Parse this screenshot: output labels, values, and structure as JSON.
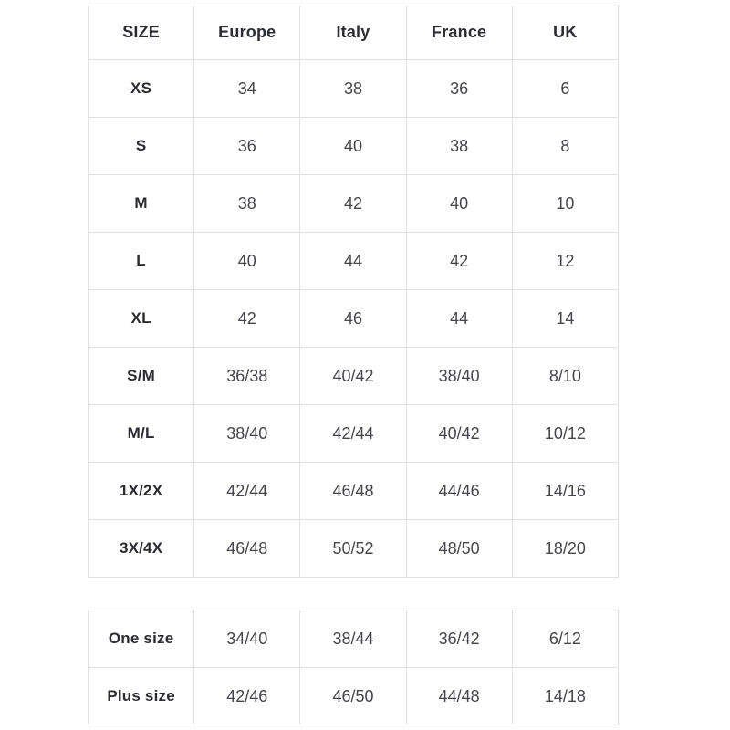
{
  "colors": {
    "background": "#ffffff",
    "border": "#dee2e6",
    "label_text": "#2b2b34",
    "cell_text": "#45454e"
  },
  "table_main": {
    "columns": [
      "SIZE",
      "Europe",
      "Italy",
      "France",
      "UK"
    ],
    "rows": [
      {
        "size": "XS",
        "values": [
          "34",
          "38",
          "36",
          "6"
        ]
      },
      {
        "size": "S",
        "values": [
          "36",
          "40",
          "38",
          "8"
        ]
      },
      {
        "size": "M",
        "values": [
          "38",
          "42",
          "40",
          "10"
        ]
      },
      {
        "size": "L",
        "values": [
          "40",
          "44",
          "42",
          "12"
        ]
      },
      {
        "size": "XL",
        "values": [
          "42",
          "46",
          "44",
          "14"
        ]
      },
      {
        "size": "S/M",
        "values": [
          "36/38",
          "40/42",
          "38/40",
          "8/10"
        ]
      },
      {
        "size": "M/L",
        "values": [
          "38/40",
          "42/44",
          "40/42",
          "10/12"
        ]
      },
      {
        "size": "1X/2X",
        "values": [
          "42/44",
          "46/48",
          "44/46",
          "14/16"
        ]
      },
      {
        "size": "3X/4X",
        "values": [
          "46/48",
          "50/52",
          "48/50",
          "18/20"
        ]
      }
    ]
  },
  "table_extra": {
    "rows": [
      {
        "size": "One size",
        "values": [
          "34/40",
          "38/44",
          "36/42",
          "6/12"
        ]
      },
      {
        "size": "Plus size",
        "values": [
          "42/46",
          "46/50",
          "44/48",
          "14/18"
        ]
      }
    ]
  }
}
